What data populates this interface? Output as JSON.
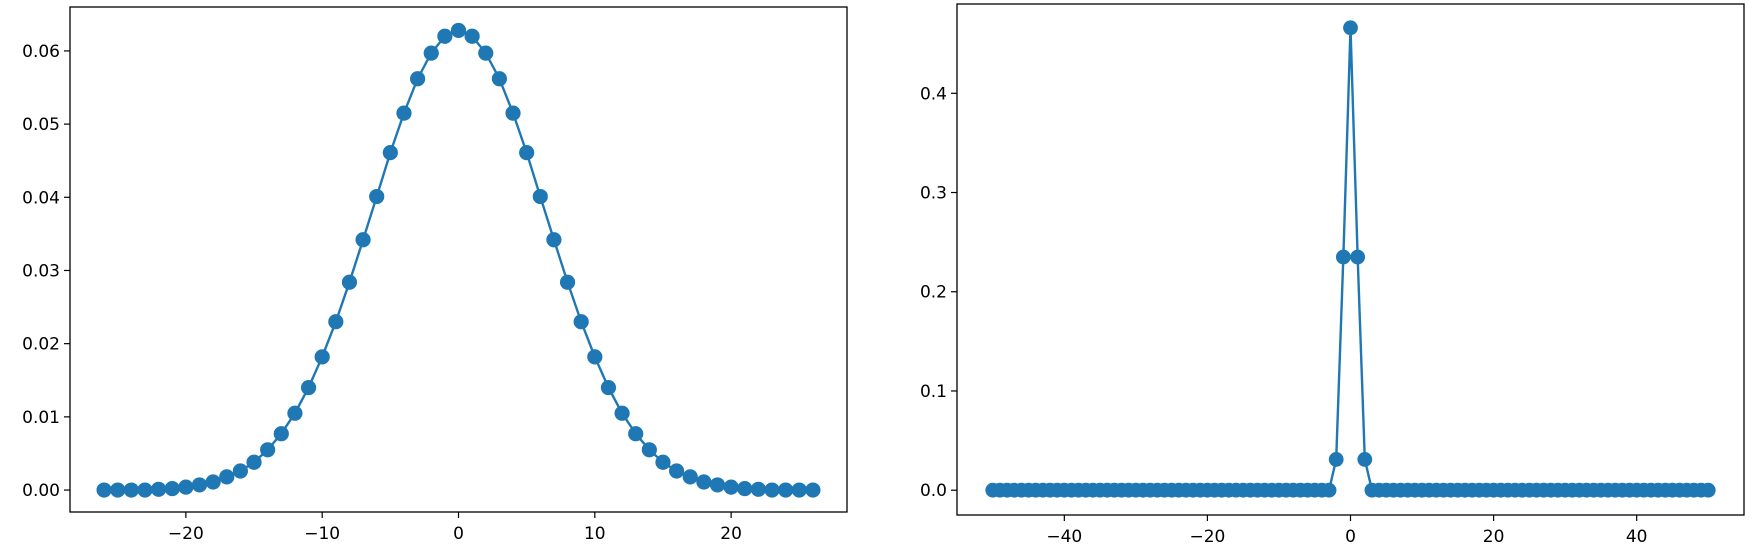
{
  "colors": {
    "series": "#1f77b4",
    "background": "#ffffff",
    "axes": "#000000"
  },
  "chart_data": [
    {
      "type": "line",
      "marker": "circle",
      "grid": false,
      "title": "",
      "xlabel": "",
      "ylabel": "",
      "xlim": [
        -28.5,
        28.5
      ],
      "ylim": [
        -0.003,
        0.066
      ],
      "xticks": [
        -20,
        -10,
        0,
        10,
        20
      ],
      "xtick_labels": [
        "−20",
        "−10",
        "0",
        "10",
        "20"
      ],
      "yticks": [
        0.0,
        0.01,
        0.02,
        0.03,
        0.04,
        0.05,
        0.06
      ],
      "ytick_labels": [
        "0.00",
        "0.01",
        "0.02",
        "0.03",
        "0.04",
        "0.05",
        "0.06"
      ],
      "series": [
        {
          "x": [
            -26,
            -25,
            -24,
            -23,
            -22,
            -21,
            -20,
            -19,
            -18,
            -17,
            -16,
            -15,
            -14,
            -13,
            -12,
            -11,
            -10,
            -9,
            -8,
            -7,
            -6,
            -5,
            -4,
            -3,
            -2,
            -1,
            0,
            1,
            2,
            3,
            4,
            5,
            6,
            7,
            8,
            9,
            10,
            11,
            12,
            13,
            14,
            15,
            16,
            17,
            18,
            19,
            20,
            21,
            22,
            23,
            24,
            25,
            26
          ],
          "values": [
            0.0,
            0.0,
            0.0,
            0.0,
            0.0001,
            0.0002,
            0.0004,
            0.0007,
            0.0011,
            0.0018,
            0.0026,
            0.0038,
            0.0055,
            0.0077,
            0.0105,
            0.014,
            0.0182,
            0.023,
            0.0284,
            0.0342,
            0.0401,
            0.0461,
            0.0515,
            0.0562,
            0.0597,
            0.062,
            0.0628,
            0.062,
            0.0597,
            0.0562,
            0.0515,
            0.0461,
            0.0401,
            0.0342,
            0.0284,
            0.023,
            0.0182,
            0.014,
            0.0105,
            0.0077,
            0.0055,
            0.0038,
            0.0026,
            0.0018,
            0.0011,
            0.0007,
            0.0004,
            0.0002,
            0.0001,
            0.0,
            0.0,
            0.0,
            0.0
          ]
        }
      ]
    },
    {
      "type": "line",
      "marker": "circle",
      "grid": false,
      "title": "",
      "xlabel": "",
      "ylabel": "",
      "xlim": [
        -55,
        55
      ],
      "ylim": [
        -0.025,
        0.49
      ],
      "xticks": [
        -40,
        -20,
        0,
        20,
        40
      ],
      "xtick_labels": [
        "−40",
        "−20",
        "0",
        "20",
        "40"
      ],
      "yticks": [
        0.0,
        0.1,
        0.2,
        0.3,
        0.4
      ],
      "ytick_labels": [
        "0.0",
        "0.1",
        "0.2",
        "0.3",
        "0.4"
      ],
      "series": [
        {
          "x": [
            -50,
            -49,
            -48,
            -47,
            -46,
            -45,
            -44,
            -43,
            -42,
            -41,
            -40,
            -39,
            -38,
            -37,
            -36,
            -35,
            -34,
            -33,
            -32,
            -31,
            -30,
            -29,
            -28,
            -27,
            -26,
            -25,
            -24,
            -23,
            -22,
            -21,
            -20,
            -19,
            -18,
            -17,
            -16,
            -15,
            -14,
            -13,
            -12,
            -11,
            -10,
            -9,
            -8,
            -7,
            -6,
            -5,
            -4,
            -3,
            -2,
            -1,
            0,
            1,
            2,
            3,
            4,
            5,
            6,
            7,
            8,
            9,
            10,
            11,
            12,
            13,
            14,
            15,
            16,
            17,
            18,
            19,
            20,
            21,
            22,
            23,
            24,
            25,
            26,
            27,
            28,
            29,
            30,
            31,
            32,
            33,
            34,
            35,
            36,
            37,
            38,
            39,
            40,
            41,
            42,
            43,
            44,
            45,
            46,
            47,
            48,
            49,
            50
          ],
          "values": [
            0,
            0,
            0,
            0,
            0,
            0,
            0,
            0,
            0,
            0,
            0,
            0,
            0,
            0,
            0,
            0,
            0,
            0,
            0,
            0,
            0,
            0,
            0,
            0,
            0,
            0,
            0,
            0,
            0,
            0,
            0,
            0,
            0,
            0,
            0,
            0,
            0,
            0,
            0,
            0,
            0,
            0,
            0,
            0,
            0,
            0,
            0,
            0,
            0.031,
            0.235,
            0.466,
            0.235,
            0.031,
            0,
            0,
            0,
            0,
            0,
            0,
            0,
            0,
            0,
            0,
            0,
            0,
            0,
            0,
            0,
            0,
            0,
            0,
            0,
            0,
            0,
            0,
            0,
            0,
            0,
            0,
            0,
            0,
            0,
            0,
            0,
            0,
            0,
            0,
            0,
            0,
            0,
            0,
            0,
            0,
            0,
            0,
            0,
            0,
            0,
            0,
            0,
            0
          ]
        }
      ]
    }
  ]
}
